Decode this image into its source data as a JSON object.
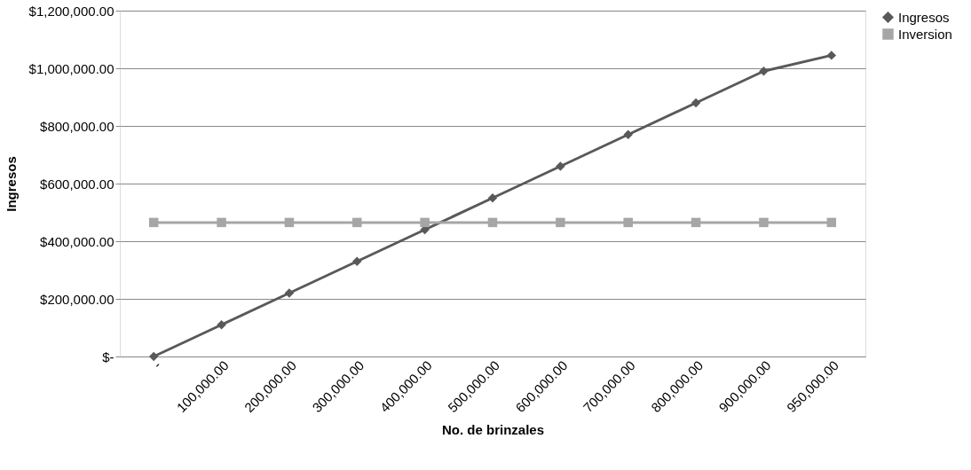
{
  "chart_data": {
    "type": "line",
    "xlabel": "No. de brinzales",
    "ylabel": "Ingresos",
    "categories": [
      "-",
      "100,000.00",
      "200,000.00",
      "300,000.00",
      "400,000.00",
      "500,000.00",
      "600,000.00",
      "700,000.00",
      "800,000.00",
      "900,000.00",
      "950,000.00"
    ],
    "series": [
      {
        "name": "Ingresos",
        "color": "#595959",
        "marker": "diamond",
        "values": [
          0,
          110000,
          220000,
          330000,
          440000,
          550000,
          660000,
          770000,
          880000,
          990000,
          1045000
        ]
      },
      {
        "name": "Inversion",
        "color": "#a6a6a6",
        "marker": "square",
        "values": [
          465000,
          465000,
          465000,
          465000,
          465000,
          465000,
          465000,
          465000,
          465000,
          465000,
          465000
        ]
      }
    ],
    "ylim": [
      0,
      1200000
    ],
    "yticks": [
      {
        "value": 0,
        "label": "$-"
      },
      {
        "value": 200000,
        "label": "$200,000.00"
      },
      {
        "value": 400000,
        "label": "$400,000.00"
      },
      {
        "value": 600000,
        "label": "$600,000.00"
      },
      {
        "value": 800000,
        "label": "$800,000.00"
      },
      {
        "value": 1000000,
        "label": "$1,000,000.00"
      },
      {
        "value": 1200000,
        "label": "$1,200,000.00"
      }
    ],
    "grid": "y",
    "legend": "right",
    "line_style": "solid"
  }
}
